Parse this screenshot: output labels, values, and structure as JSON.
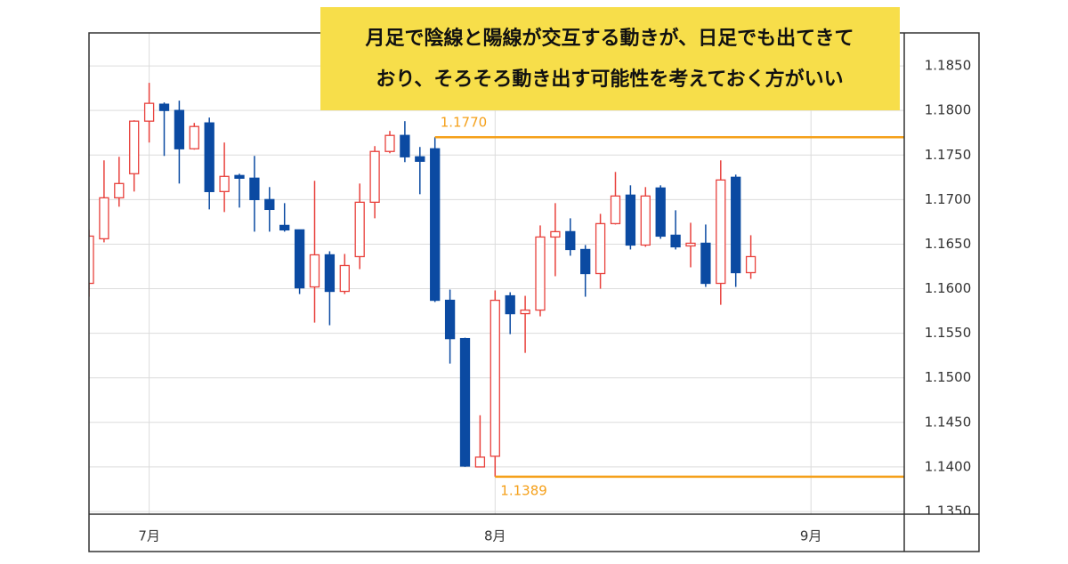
{
  "chart_data": {
    "type": "candlestick",
    "annotation": [
      "月足で陰線と陽線が交互する動きが、日足でも出てきて",
      "おり、そろそろ動き出す可能性を考えておく方がいい"
    ],
    "categories": [
      null,
      null,
      null,
      null,
      "7月",
      null,
      null,
      null,
      null,
      null,
      null,
      null,
      null,
      null,
      null,
      null,
      null,
      null,
      null,
      null,
      null,
      null,
      null,
      null,
      null,
      null,
      null,
      "8月",
      null,
      null,
      null,
      null,
      null,
      null,
      null,
      null,
      null,
      null,
      null,
      null,
      null,
      null,
      null,
      null,
      null,
      null,
      null,
      null,
      "9月",
      null,
      null,
      null,
      null,
      null,
      null
    ],
    "open": [
      1.1606,
      1.1656,
      1.1702,
      1.1729,
      1.1788,
      1.1807,
      1.18,
      1.1757,
      1.1786,
      1.1709,
      1.1727,
      1.1724,
      1.17,
      1.1671,
      1.1666,
      1.1602,
      1.1638,
      1.1597,
      1.1636,
      1.1697,
      1.1754,
      1.1772,
      1.1748,
      1.1757,
      1.1587,
      1.1544,
      1.14,
      1.1412,
      1.1592,
      1.1572,
      1.1576,
      1.1658,
      1.1664,
      1.1644,
      1.1617,
      1.1673,
      1.1705,
      1.1649,
      1.1713,
      1.166,
      1.1648,
      1.1651,
      1.1606,
      1.1725,
      1.1618,
      null,
      null,
      null,
      null,
      null,
      null,
      null,
      null,
      null,
      null
    ],
    "high": [
      1.1666,
      1.1744,
      1.1748,
      1.1789,
      1.1831,
      1.1809,
      1.1811,
      1.1786,
      1.1792,
      1.1764,
      1.1729,
      1.1749,
      1.1714,
      1.1696,
      1.1666,
      1.1721,
      1.1642,
      1.1639,
      1.1718,
      1.176,
      1.1777,
      1.1788,
      1.1759,
      1.177,
      1.1599,
      1.1545,
      1.1458,
      1.1598,
      1.1596,
      1.1592,
      1.1671,
      1.1696,
      1.1679,
      1.1649,
      1.1684,
      1.1731,
      1.1716,
      1.1714,
      1.1716,
      1.1688,
      1.1674,
      1.1672,
      1.1744,
      1.1728,
      1.166,
      null,
      null,
      null,
      null,
      null,
      null,
      null,
      null,
      null,
      null
    ],
    "low": [
      1.1591,
      1.1652,
      1.1692,
      1.1709,
      1.1764,
      1.1749,
      1.1718,
      1.1756,
      1.1689,
      1.1686,
      1.1691,
      1.1664,
      1.1664,
      1.1664,
      1.1594,
      1.1562,
      1.1559,
      1.1594,
      1.1622,
      1.1679,
      1.1752,
      1.1742,
      1.1706,
      1.1585,
      1.1516,
      1.14,
      1.14,
      1.1389,
      1.1549,
      1.1528,
      1.1569,
      1.1614,
      1.1637,
      1.1591,
      1.16,
      1.1672,
      1.1644,
      1.1647,
      1.1656,
      1.1644,
      1.1624,
      1.1602,
      1.1582,
      1.1602,
      1.1611,
      null,
      null,
      null,
      null,
      null,
      null,
      null,
      null,
      null,
      null
    ],
    "close": [
      1.1659,
      1.1702,
      1.1718,
      1.1788,
      1.1808,
      1.18,
      1.1757,
      1.1782,
      1.1709,
      1.1726,
      1.1724,
      1.17,
      1.1689,
      1.1666,
      1.1601,
      1.1638,
      1.1597,
      1.1626,
      1.1697,
      1.1754,
      1.1772,
      1.1748,
      1.1743,
      1.1587,
      1.1544,
      1.1401,
      1.1411,
      1.1587,
      1.1572,
      1.1576,
      1.1658,
      1.1664,
      1.1644,
      1.1617,
      1.1673,
      1.1704,
      1.1649,
      1.1704,
      1.1659,
      1.1647,
      1.1651,
      1.1606,
      1.1722,
      1.1618,
      1.1636,
      null,
      null,
      null,
      null,
      null,
      null,
      null,
      null,
      null,
      null
    ],
    "up_color": "#e8413c",
    "down_color": "#0b4aa2",
    "levels": [
      {
        "value": 1.177,
        "label": "1.1770"
      },
      {
        "value": 1.1389,
        "label": "1.1389"
      }
    ],
    "level_color": "#f5a01a",
    "ylim": [
      1.1347,
      1.1887
    ],
    "yticks": [
      {
        "value": 1.135,
        "label": "1.1350"
      },
      {
        "value": 1.14,
        "label": "1.1400"
      },
      {
        "value": 1.145,
        "label": "1.1450"
      },
      {
        "value": 1.15,
        "label": "1.1500"
      },
      {
        "value": 1.155,
        "label": "1.1550"
      },
      {
        "value": 1.16,
        "label": "1.1600"
      },
      {
        "value": 1.165,
        "label": "1.1650"
      },
      {
        "value": 1.17,
        "label": "1.1700"
      },
      {
        "value": 1.175,
        "label": "1.1750"
      },
      {
        "value": 1.18,
        "label": "1.1800"
      },
      {
        "value": 1.185,
        "label": "1.1850"
      }
    ],
    "grid": true
  }
}
